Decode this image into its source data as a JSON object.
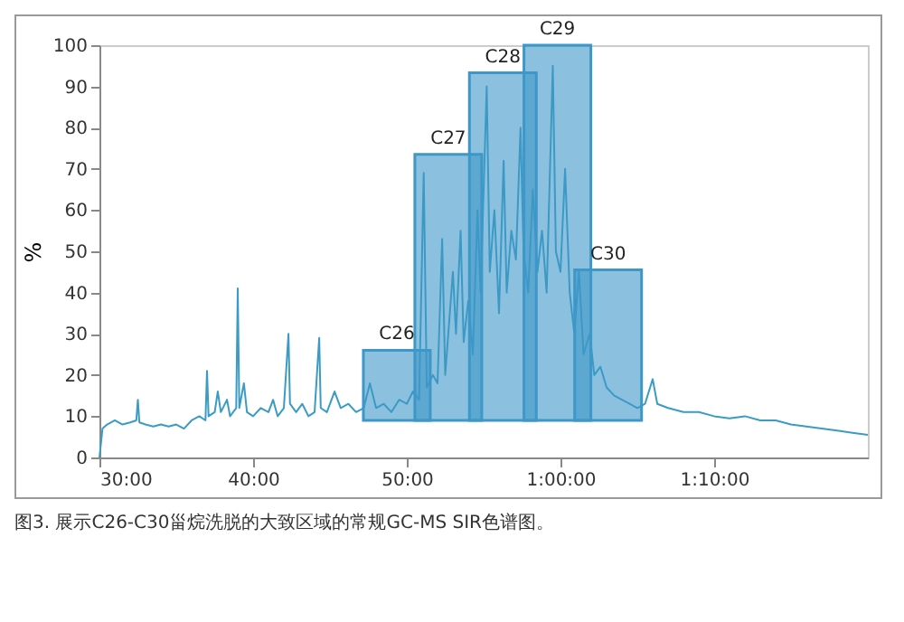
{
  "chart_data": {
    "type": "line",
    "ylabel": "%",
    "xlim": [
      30,
      80
    ],
    "ylim": [
      0,
      100
    ],
    "xticks": [
      {
        "value": 30,
        "label": "30:00"
      },
      {
        "value": 40,
        "label": "40:00"
      },
      {
        "value": 50,
        "label": "50:00"
      },
      {
        "value": 60,
        "label": "1:00:00"
      },
      {
        "value": 70,
        "label": "1:10:00"
      }
    ],
    "yticks": [
      0,
      10,
      20,
      30,
      40,
      50,
      60,
      70,
      80,
      90,
      100
    ],
    "grid": false,
    "marker": "none",
    "line_style": "solid",
    "series": [
      {
        "color": "#3a9cc4",
        "x": [
          30,
          30.2,
          30.5,
          31,
          31.5,
          32,
          32.4,
          32.5,
          32.6,
          33,
          33.5,
          34,
          34.5,
          35,
          35.5,
          36,
          36.5,
          36.9,
          37,
          37.1,
          37.5,
          37.7,
          37.9,
          38.3,
          38.5,
          38.9,
          39,
          39.1,
          39.4,
          39.6,
          40,
          40.5,
          41,
          41.3,
          41.6,
          42,
          42.3,
          42.4,
          42.8,
          43.2,
          43.6,
          44,
          44.3,
          44.4,
          44.8,
          45.3,
          45.7,
          46.2,
          46.7,
          47.2,
          47.6,
          48,
          48.5,
          49,
          49.5,
          50,
          50.4,
          50.8,
          51.1,
          51.3,
          51.7,
          52,
          52.3,
          52.5,
          52.8,
          53,
          53.2,
          53.5,
          53.7,
          54,
          54.3,
          54.6,
          54.8,
          55.2,
          55.4,
          55.7,
          56,
          56.3,
          56.5,
          56.8,
          57.1,
          57.4,
          57.6,
          57.9,
          58.2,
          58.5,
          58.8,
          59.1,
          59.5,
          59.7,
          60,
          60.3,
          60.6,
          60.9,
          61.2,
          61.5,
          61.9,
          62.2,
          62.6,
          63,
          63.5,
          64,
          64.5,
          65,
          65.5,
          66,
          66.3,
          67,
          68,
          69,
          70,
          71,
          72,
          73,
          74,
          75,
          76,
          77,
          78,
          79,
          80
        ],
        "values": [
          0,
          7,
          8,
          9,
          8,
          8.5,
          9,
          14,
          8.5,
          8,
          7.5,
          8,
          7.5,
          8,
          7,
          9,
          10,
          9,
          21,
          10,
          11,
          16,
          11,
          14,
          10,
          12,
          41,
          12,
          18,
          11,
          10,
          12,
          11,
          14,
          10,
          12,
          30,
          13,
          11,
          13,
          10,
          11,
          29,
          12,
          11,
          16,
          12,
          13,
          11,
          12,
          18,
          12,
          13,
          11,
          14,
          13,
          16,
          14,
          69,
          17,
          20,
          18,
          53,
          20,
          35,
          45,
          30,
          55,
          28,
          38,
          25,
          60,
          40,
          90,
          45,
          60,
          35,
          72,
          40,
          55,
          48,
          80,
          50,
          40,
          65,
          45,
          55,
          40,
          95,
          50,
          45,
          70,
          40,
          30,
          45,
          25,
          30,
          20,
          22,
          17,
          15,
          14,
          13,
          12,
          13,
          19,
          13,
          12,
          11,
          11,
          10,
          9.5,
          10,
          9,
          9,
          8,
          7.5,
          7,
          6.5,
          6,
          5.5
        ]
      },
      {
        "type": "bar",
        "color": "#3d97c8",
        "x": [
          49.35,
          52.7,
          56.25,
          59.8,
          63.1
        ],
        "base": [
          9,
          9,
          9,
          9,
          9
        ],
        "values": [
          17,
          64.5,
          84.3,
          91,
          36.5
        ]
      }
    ],
    "annotations": [
      {
        "text": "C26",
        "x": 49.35,
        "y": 26
      },
      {
        "text": "C27",
        "x": 52.7,
        "y": 73.5
      },
      {
        "text": "C28",
        "x": 56.25,
        "y": 93.3
      },
      {
        "text": "C29",
        "x": 59.8,
        "y": 100
      },
      {
        "text": "C30",
        "x": 63.1,
        "y": 45.5
      },
      "图3. 展示C26-C30甾烷洗脱的大致区域的常规GC-MS SIR色谱图。"
    ]
  }
}
